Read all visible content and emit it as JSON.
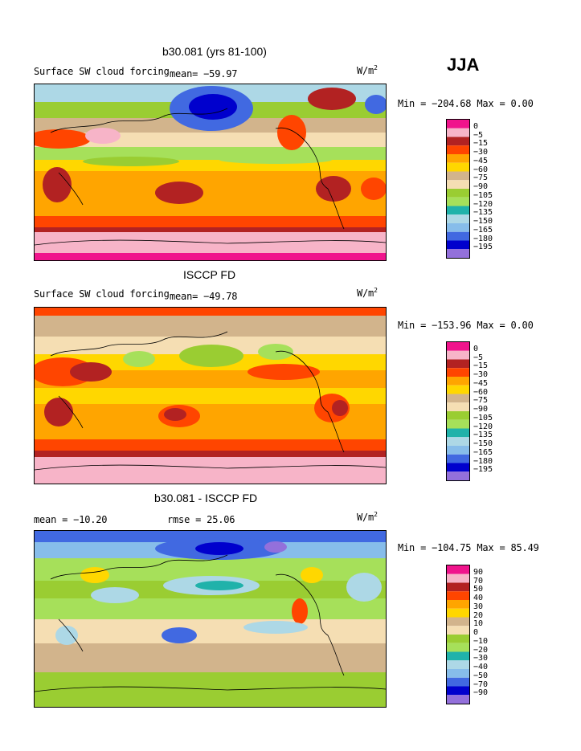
{
  "season": "JJA",
  "chart_data": [
    {
      "type": "heatmap",
      "title": "b30.081 (yrs 81-100)",
      "variable": "Surface SW cloud forcing",
      "left_stat": "",
      "mean_label": "mean= −59.97",
      "units": "W/m",
      "units_exp": "2",
      "minmax": "Min = −204.68 Max =    0.00",
      "min": -204.68,
      "max": 0.0,
      "mean": -59.97,
      "levels": [
        "0",
        "−5",
        "−15",
        "−30",
        "−45",
        "−60",
        "−75",
        "−90",
        "−105",
        "−120",
        "−135",
        "−150",
        "−165",
        "−180",
        "−195"
      ],
      "colors": [
        "#f0148c",
        "#f7b4c8",
        "#b22222",
        "#ff4500",
        "#ffa500",
        "#ffd700",
        "#d2b48c",
        "#f5deb3",
        "#9acd32",
        "#a6e05a",
        "#20b2aa",
        "#add8e6",
        "#87bdea",
        "#4169e1",
        "#0000cd",
        "#9370db"
      ]
    },
    {
      "type": "heatmap",
      "title": "ISCCP FD",
      "variable": "Surface SW cloud forcing",
      "left_stat": "",
      "mean_label": "mean= −49.78",
      "units": "W/m",
      "units_exp": "2",
      "minmax": "Min = −153.96 Max =    0.00",
      "min": -153.96,
      "max": 0.0,
      "mean": -49.78,
      "levels": [
        "0",
        "−5",
        "−15",
        "−30",
        "−45",
        "−60",
        "−75",
        "−90",
        "−105",
        "−120",
        "−135",
        "−150",
        "−165",
        "−180",
        "−195"
      ],
      "colors": [
        "#f0148c",
        "#f7b4c8",
        "#b22222",
        "#ff4500",
        "#ffa500",
        "#ffd700",
        "#d2b48c",
        "#f5deb3",
        "#9acd32",
        "#a6e05a",
        "#20b2aa",
        "#add8e6",
        "#87bdea",
        "#4169e1",
        "#0000cd",
        "#9370db"
      ]
    },
    {
      "type": "heatmap",
      "title": "b30.081 - ISCCP FD",
      "variable": "",
      "left_stat": "mean = −10.20",
      "mean_label": "rmse =  25.06",
      "units": "W/m",
      "units_exp": "2",
      "minmax": "Min = −104.75 Max =  85.49",
      "min": -104.75,
      "max": 85.49,
      "mean": -10.2,
      "rmse": 25.06,
      "levels": [
        "90",
        "70",
        "50",
        "40",
        "30",
        "20",
        "10",
        "0",
        "−10",
        "−20",
        "−30",
        "−40",
        "−50",
        "−70",
        "−90"
      ],
      "colors": [
        "#f0148c",
        "#f7b4c8",
        "#b22222",
        "#ff4500",
        "#ffa500",
        "#ffd700",
        "#d2b48c",
        "#f5deb3",
        "#9acd32",
        "#a6e05a",
        "#20b2aa",
        "#add8e6",
        "#87bdea",
        "#4169e1",
        "#0000cd",
        "#9370db"
      ]
    }
  ]
}
